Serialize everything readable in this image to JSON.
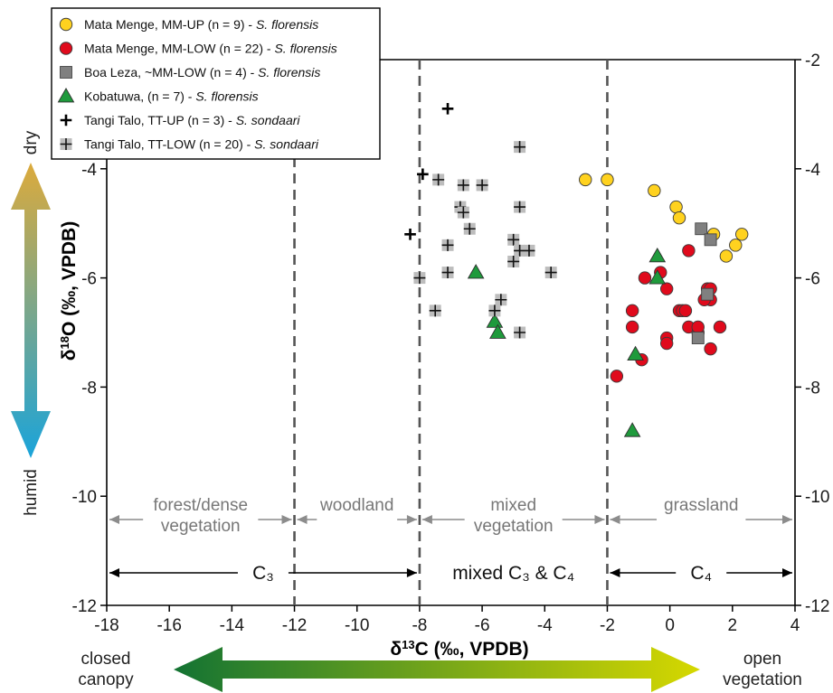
{
  "chart_data": {
    "type": "scatter",
    "xlabel": "δ13C (‰, VPDB)",
    "ylabel": "δ18O (‰, VPDB)",
    "xlim": [
      -18,
      4
    ],
    "ylim": [
      -12,
      -2
    ],
    "x_ticks": [
      "-18",
      "-16",
      "-14",
      "-12",
      "-10",
      "-8",
      "-6",
      "-4",
      "-2",
      "0",
      "2",
      "4"
    ],
    "y_ticks_left": [
      "-4",
      "-6",
      "-8",
      "-10",
      "-12"
    ],
    "y_ticks_right": [
      "-2",
      "-4",
      "-6",
      "-8",
      "-10",
      "-12"
    ],
    "legend_position": "top-left",
    "series": [
      {
        "name": "Mata Menge, MM-UP (n = 9)",
        "taxon": "S. florensis",
        "marker": "circle",
        "color": "#ffd21f",
        "points": [
          [
            -2.7,
            -4.2
          ],
          [
            -2.0,
            -4.2
          ],
          [
            -0.5,
            -4.4
          ],
          [
            0.2,
            -4.7
          ],
          [
            0.3,
            -4.9
          ],
          [
            1.8,
            -5.6
          ],
          [
            2.1,
            -5.4
          ],
          [
            2.3,
            -5.2
          ],
          [
            1.4,
            -5.2
          ]
        ]
      },
      {
        "name": "Mata Menge, MM-LOW (n = 22)",
        "taxon": "S. florensis",
        "marker": "circle",
        "color": "#e00a1c",
        "points": [
          [
            -1.7,
            -7.8
          ],
          [
            -1.2,
            -6.6
          ],
          [
            -1.2,
            -6.9
          ],
          [
            -0.9,
            -7.5
          ],
          [
            -0.8,
            -6.0
          ],
          [
            -0.3,
            -5.9
          ],
          [
            -0.1,
            -6.2
          ],
          [
            -0.1,
            -7.1
          ],
          [
            -0.1,
            -7.2
          ],
          [
            0.3,
            -6.6
          ],
          [
            0.4,
            -6.6
          ],
          [
            0.6,
            -6.9
          ],
          [
            0.6,
            -5.5
          ],
          [
            0.9,
            -7.0
          ],
          [
            1.2,
            -6.2
          ],
          [
            1.3,
            -6.4
          ],
          [
            1.3,
            -6.2
          ],
          [
            1.6,
            -6.9
          ],
          [
            1.3,
            -7.3
          ],
          [
            0.9,
            -6.9
          ],
          [
            0.5,
            -6.6
          ],
          [
            1.1,
            -6.4
          ]
        ]
      },
      {
        "name": "Boa Leza, ~MM-LOW (n = 4)",
        "taxon": "S. florensis",
        "marker": "square",
        "color": "#808080",
        "points": [
          [
            1.0,
            -5.1
          ],
          [
            1.3,
            -5.3
          ],
          [
            1.2,
            -6.3
          ],
          [
            0.9,
            -7.1
          ]
        ]
      },
      {
        "name": "Kobatuwa, (n = 7)",
        "taxon": "S. florensis",
        "marker": "triangle",
        "color": "#1f9a3c",
        "points": [
          [
            -6.2,
            -5.9
          ],
          [
            -5.6,
            -6.8
          ],
          [
            -5.5,
            -7.0
          ],
          [
            -1.1,
            -7.4
          ],
          [
            -0.4,
            -5.6
          ],
          [
            -0.4,
            -6.0
          ],
          [
            -1.2,
            -8.8
          ]
        ]
      },
      {
        "name": "Tangi Talo, TT-UP (n = 3)",
        "taxon": "S. sondaari",
        "marker": "plus",
        "color": "#000000",
        "points": [
          [
            -7.1,
            -2.9
          ],
          [
            -7.9,
            -4.1
          ],
          [
            -8.3,
            -5.2
          ]
        ]
      },
      {
        "name": "Tangi Talo, TT-LOW (n = 20)",
        "taxon": "S. sondaari",
        "marker": "plus-box",
        "color": "#bdbdbd",
        "points": [
          [
            -4.8,
            -3.6
          ],
          [
            -7.4,
            -4.2
          ],
          [
            -6.6,
            -4.3
          ],
          [
            -6.0,
            -4.3
          ],
          [
            -6.7,
            -4.7
          ],
          [
            -6.6,
            -4.8
          ],
          [
            -4.8,
            -4.7
          ],
          [
            -6.4,
            -5.1
          ],
          [
            -7.1,
            -5.4
          ],
          [
            -5.0,
            -5.3
          ],
          [
            -4.8,
            -5.5
          ],
          [
            -4.5,
            -5.5
          ],
          [
            -5.0,
            -5.7
          ],
          [
            -7.1,
            -5.9
          ],
          [
            -3.8,
            -5.9
          ],
          [
            -8.0,
            -6.0
          ],
          [
            -5.4,
            -6.4
          ],
          [
            -5.6,
            -6.6
          ],
          [
            -7.5,
            -6.6
          ],
          [
            -4.8,
            -7.0
          ]
        ]
      }
    ],
    "vegetation_zones": [
      {
        "label": "forest/dense vegetation",
        "lines": [
          "forest/dense",
          "vegetation"
        ],
        "from": -18,
        "to": -12
      },
      {
        "label": "woodland",
        "lines": [
          "woodland"
        ],
        "from": -12,
        "to": -8
      },
      {
        "label": "mixed vegetation",
        "lines": [
          "mixed",
          "vegetation"
        ],
        "from": -8,
        "to": -2
      },
      {
        "label": "grassland",
        "lines": [
          "grassland"
        ],
        "from": -2,
        "to": 4
      }
    ],
    "zone_boundaries": [
      -12,
      -8,
      -2
    ],
    "photosynthetic_zones": [
      {
        "label": "C₃",
        "from": -18,
        "to": -8,
        "arrows": "both"
      },
      {
        "label": "mixed C₃ & C₄",
        "from": -8,
        "to": -2,
        "arrows": "none"
      },
      {
        "label": "C₄",
        "from": -2,
        "to": 4,
        "arrows": "both"
      }
    ],
    "y_arrow": {
      "top_label": "dry",
      "bottom_label": "humid",
      "top_color": "#dcaa3c",
      "bottom_color": "#1aa4da"
    },
    "x_arrow": {
      "left_label_lines": [
        "closed",
        "canopy"
      ],
      "right_label_lines": [
        "open",
        "vegetation"
      ],
      "left_color": "#137333",
      "right_color": "#d6d800"
    }
  },
  "colors": {
    "axis": "#000000",
    "boundary": "#555555",
    "zone_arrow": "#8c8c8c",
    "zone_text": "#777777"
  }
}
